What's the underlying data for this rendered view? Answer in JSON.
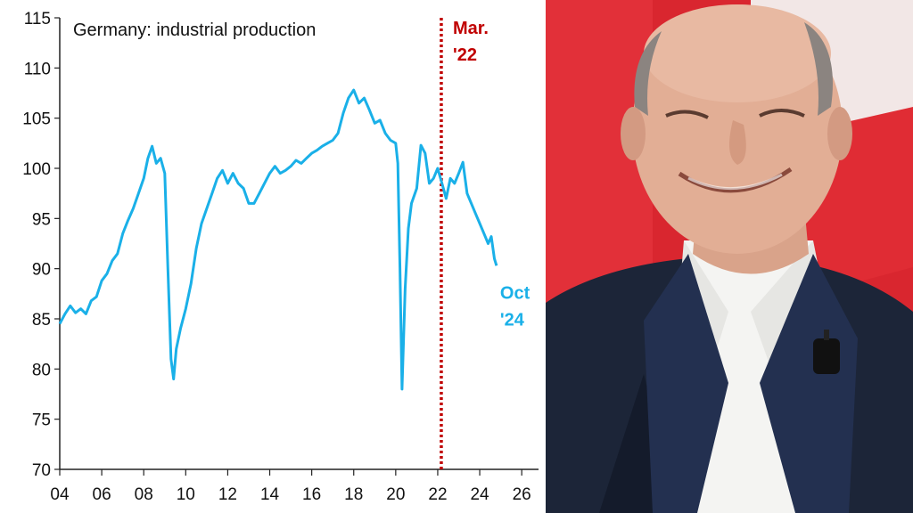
{
  "chart_data": {
    "type": "line",
    "title": "Germany: industrial production",
    "xlabel": "",
    "ylabel": "",
    "xlim": [
      2004.0,
      2026.8
    ],
    "ylim": [
      70,
      115
    ],
    "x_ticks": [
      2004,
      2006,
      2008,
      2010,
      2012,
      2014,
      2016,
      2018,
      2020,
      2022,
      2024,
      2026
    ],
    "x_tick_labels": [
      "04",
      "06",
      "08",
      "10",
      "12",
      "14",
      "16",
      "18",
      "20",
      "22",
      "24",
      "26"
    ],
    "y_ticks": [
      70,
      75,
      80,
      85,
      90,
      95,
      100,
      105,
      110,
      115
    ],
    "y_tick_labels": [
      "70",
      "75",
      "80",
      "85",
      "90",
      "95",
      "100",
      "105",
      "110",
      "115"
    ],
    "grid": false,
    "series": [
      {
        "color": "#1ab0e8",
        "points": [
          [
            2004.0,
            84.5
          ],
          [
            2004.25,
            85.5
          ],
          [
            2004.5,
            86.3
          ],
          [
            2004.75,
            85.6
          ],
          [
            2005.0,
            86.0
          ],
          [
            2005.25,
            85.5
          ],
          [
            2005.5,
            86.8
          ],
          [
            2005.75,
            87.2
          ],
          [
            2006.0,
            88.8
          ],
          [
            2006.25,
            89.5
          ],
          [
            2006.5,
            90.8
          ],
          [
            2006.75,
            91.5
          ],
          [
            2007.0,
            93.5
          ],
          [
            2007.25,
            94.8
          ],
          [
            2007.5,
            96.0
          ],
          [
            2007.75,
            97.5
          ],
          [
            2008.0,
            99.0
          ],
          [
            2008.2,
            101.0
          ],
          [
            2008.4,
            102.2
          ],
          [
            2008.6,
            100.5
          ],
          [
            2008.8,
            101.0
          ],
          [
            2009.0,
            99.5
          ],
          [
            2009.15,
            90.0
          ],
          [
            2009.3,
            81.0
          ],
          [
            2009.42,
            79.0
          ],
          [
            2009.55,
            82.0
          ],
          [
            2009.75,
            84.0
          ],
          [
            2010.0,
            86.0
          ],
          [
            2010.25,
            88.5
          ],
          [
            2010.5,
            92.0
          ],
          [
            2010.75,
            94.5
          ],
          [
            2011.0,
            96.0
          ],
          [
            2011.25,
            97.5
          ],
          [
            2011.5,
            99.0
          ],
          [
            2011.75,
            99.8
          ],
          [
            2012.0,
            98.5
          ],
          [
            2012.25,
            99.5
          ],
          [
            2012.5,
            98.5
          ],
          [
            2012.75,
            98.0
          ],
          [
            2013.0,
            96.5
          ],
          [
            2013.25,
            96.5
          ],
          [
            2013.5,
            97.5
          ],
          [
            2013.75,
            98.5
          ],
          [
            2014.0,
            99.5
          ],
          [
            2014.25,
            100.2
          ],
          [
            2014.5,
            99.5
          ],
          [
            2014.75,
            99.8
          ],
          [
            2015.0,
            100.2
          ],
          [
            2015.25,
            100.8
          ],
          [
            2015.5,
            100.5
          ],
          [
            2015.75,
            101.0
          ],
          [
            2016.0,
            101.5
          ],
          [
            2016.25,
            101.8
          ],
          [
            2016.5,
            102.2
          ],
          [
            2016.75,
            102.5
          ],
          [
            2017.0,
            102.8
          ],
          [
            2017.25,
            103.5
          ],
          [
            2017.5,
            105.5
          ],
          [
            2017.75,
            107.0
          ],
          [
            2018.0,
            107.8
          ],
          [
            2018.25,
            106.5
          ],
          [
            2018.5,
            107.0
          ],
          [
            2018.75,
            105.8
          ],
          [
            2019.0,
            104.5
          ],
          [
            2019.25,
            104.8
          ],
          [
            2019.5,
            103.5
          ],
          [
            2019.75,
            102.8
          ],
          [
            2020.0,
            102.5
          ],
          [
            2020.1,
            100.5
          ],
          [
            2020.2,
            90.0
          ],
          [
            2020.3,
            78.0
          ],
          [
            2020.45,
            88.0
          ],
          [
            2020.6,
            94.0
          ],
          [
            2020.75,
            96.5
          ],
          [
            2021.0,
            98.0
          ],
          [
            2021.2,
            102.3
          ],
          [
            2021.4,
            101.5
          ],
          [
            2021.6,
            98.5
          ],
          [
            2021.8,
            99.0
          ],
          [
            2022.0,
            100.0
          ],
          [
            2022.2,
            98.5
          ],
          [
            2022.4,
            97.0
          ],
          [
            2022.6,
            99.0
          ],
          [
            2022.8,
            98.5
          ],
          [
            2023.0,
            99.5
          ],
          [
            2023.2,
            100.6
          ],
          [
            2023.4,
            97.5
          ],
          [
            2023.6,
            96.5
          ],
          [
            2023.8,
            95.5
          ],
          [
            2024.0,
            94.5
          ],
          [
            2024.2,
            93.5
          ],
          [
            2024.4,
            92.5
          ],
          [
            2024.55,
            93.2
          ],
          [
            2024.7,
            91.0
          ],
          [
            2024.8,
            90.3
          ]
        ]
      }
    ],
    "annotations": [
      {
        "kind": "vertical-dotted-line",
        "x": 2022.17,
        "color": "#c00000",
        "label_lines": [
          "Mar.",
          "'22"
        ]
      },
      {
        "kind": "end-label",
        "color": "#1ab0e8",
        "label_lines": [
          "Oct",
          "'24"
        ]
      }
    ]
  },
  "photo": {
    "description_icon": "portrait-photo",
    "background_color": "#d92a33"
  }
}
